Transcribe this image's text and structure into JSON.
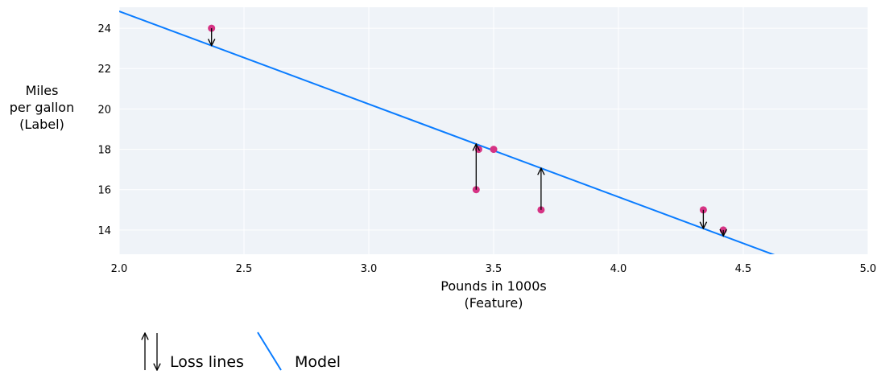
{
  "chart_data": {
    "type": "scatter",
    "xlabel": [
      "Pounds in 1000s",
      "(Feature)"
    ],
    "ylabel": [
      "Miles",
      "per gallon",
      "(Label)"
    ],
    "xlim": [
      2.0,
      5.0
    ],
    "ylim": [
      12.8,
      25.04
    ],
    "xticks": [
      "2.0",
      "2.5",
      "3.0",
      "3.5",
      "4.0",
      "4.5",
      "5.0"
    ],
    "yticks": [
      "14",
      "16",
      "18",
      "20",
      "22",
      "24"
    ],
    "grid": true,
    "background": "#eff3f8",
    "points": [
      {
        "x": 2.37,
        "y": 24
      },
      {
        "x": 3.43,
        "y": 16
      },
      {
        "x": 3.44,
        "y": 18
      },
      {
        "x": 3.5,
        "y": 18
      },
      {
        "x": 3.69,
        "y": 15
      },
      {
        "x": 4.34,
        "y": 15
      },
      {
        "x": 4.42,
        "y": 14
      }
    ],
    "point_color": "#d63384",
    "model": {
      "slope": -4.6,
      "intercept": 34.04,
      "color": "#0a7cff"
    },
    "loss_lines_for_points": [
      0,
      1,
      4,
      5,
      6
    ],
    "legend": {
      "position": "bottom-left",
      "entries": [
        "Loss lines",
        "Model"
      ]
    }
  }
}
